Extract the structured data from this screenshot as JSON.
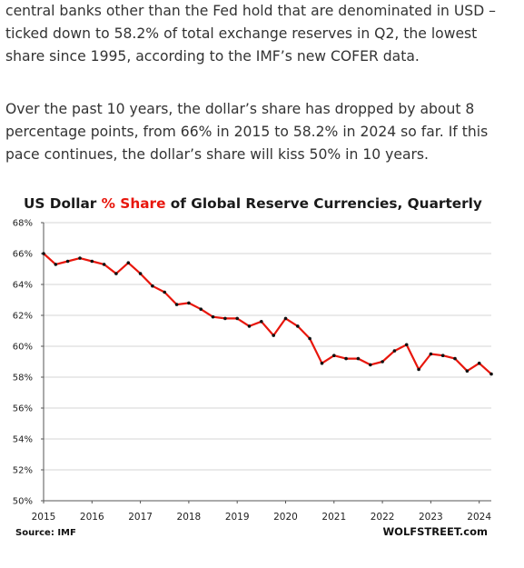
{
  "article": {
    "paragraph_1": "central banks other than the Fed hold that are denominated in USD – ticked down to 58.2% of total exchange reserves in Q2, the lowest share since 1995, according to the IMF’s new COFER data.",
    "paragraph_2": "Over the past 10 years, the dollar’s share has dropped by about 8 percentage points, from 66% in 2015 to 58.2% in 2024 so far. If this pace continues, the dollar’s share will kiss 50% in 10 years."
  },
  "chart_data": {
    "type": "line",
    "title_parts": [
      "US Dollar ",
      "% Share",
      " of Global Reserve Currencies, Quarterly"
    ],
    "title": "US Dollar % Share of Global Reserve Currencies, Quarterly",
    "xlabel": "",
    "ylabel": "",
    "x_tick_labels": [
      "2015",
      "2016",
      "2017",
      "2018",
      "2019",
      "2020",
      "2021",
      "2022",
      "2023",
      "2024"
    ],
    "y_tick_labels": [
      "50%",
      "52%",
      "54%",
      "56%",
      "58%",
      "60%",
      "62%",
      "64%",
      "66%",
      "68%"
    ],
    "ylim": [
      50,
      68
    ],
    "grid": true,
    "line_color": "#e8160c",
    "marker_color": "#111111",
    "series": [
      {
        "x": [
          "2015 Q1",
          "2015 Q2",
          "2015 Q3",
          "2015 Q4",
          "2016 Q1",
          "2016 Q2",
          "2016 Q3",
          "2016 Q4",
          "2017 Q1",
          "2017 Q2",
          "2017 Q3",
          "2017 Q4",
          "2018 Q1",
          "2018 Q2",
          "2018 Q3",
          "2018 Q4",
          "2019 Q1",
          "2019 Q2",
          "2019 Q3",
          "2019 Q4",
          "2020 Q1",
          "2020 Q2",
          "2020 Q3",
          "2020 Q4",
          "2021 Q1",
          "2021 Q2",
          "2021 Q3",
          "2021 Q4",
          "2022 Q1",
          "2022 Q2",
          "2022 Q3",
          "2022 Q4",
          "2023 Q1",
          "2023 Q2",
          "2023 Q3",
          "2023 Q4",
          "2024 Q1",
          "2024 Q2"
        ],
        "values": [
          66.0,
          65.3,
          65.5,
          65.7,
          65.5,
          65.3,
          64.7,
          65.4,
          64.7,
          63.9,
          63.5,
          62.7,
          62.8,
          62.4,
          61.9,
          61.8,
          61.8,
          61.3,
          61.6,
          60.7,
          61.8,
          61.3,
          60.5,
          58.9,
          59.4,
          59.2,
          59.2,
          58.8,
          59.0,
          59.7,
          60.1,
          58.5,
          59.5,
          59.4,
          59.2,
          58.4,
          58.9,
          58.2
        ]
      }
    ],
    "source": "Source: IMF",
    "brand": "WOLFSTREET.com"
  }
}
